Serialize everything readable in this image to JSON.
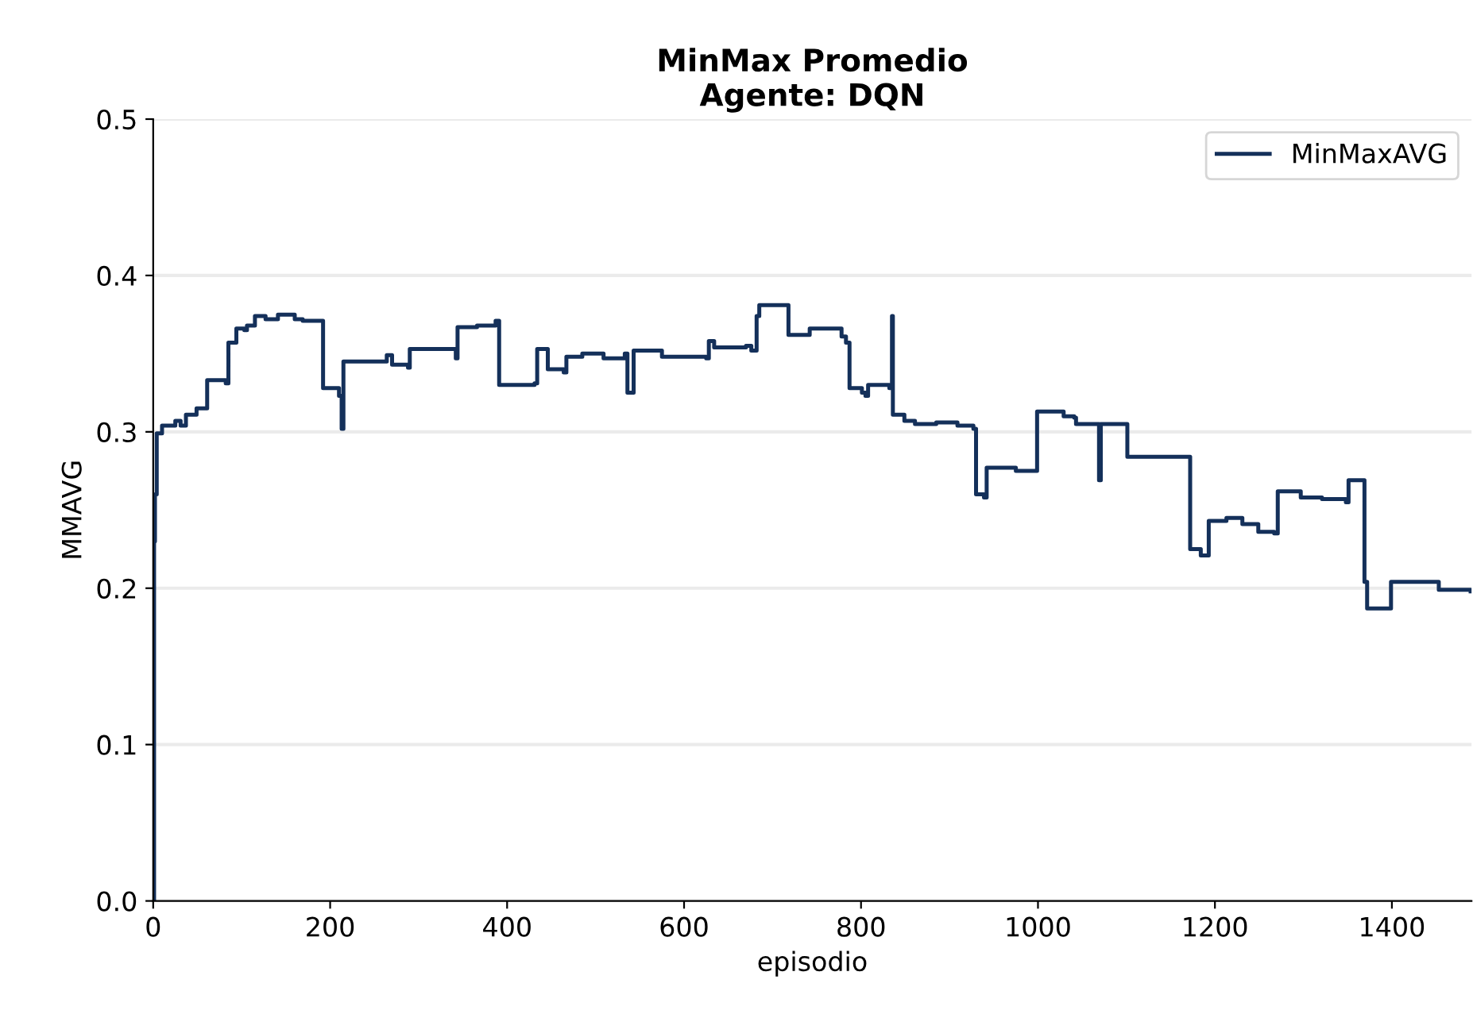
{
  "chart_data": {
    "type": "step",
    "title": "MinMax Promedio\nAgente: DQN",
    "xlabel": "episodio",
    "ylabel": "MMAVG",
    "xlim": [
      0,
      1490
    ],
    "ylim": [
      0,
      0.5
    ],
    "xticks": [
      0,
      200,
      400,
      600,
      800,
      1000,
      1200,
      1400
    ],
    "yticks": [
      {
        "value": 0,
        "label": "0.0"
      },
      0.1,
      0.2,
      0.3,
      0.4,
      0.5
    ],
    "grid": "y",
    "legend": "top right",
    "marker": "none",
    "line_style": "solid",
    "series": [
      {
        "name": "MinMaxAVG",
        "color": "#14305a",
        "x": [
          0,
          1,
          2,
          4,
          10,
          25,
          31,
          37,
          49,
          61,
          61,
          82,
          85,
          94,
          103,
          106,
          115,
          127,
          141,
          160,
          169,
          189,
          192,
          204,
          210,
          213,
          215,
          264,
          270,
          288,
          290,
          315,
          342,
          344,
          366,
          387,
          391,
          431,
          434,
          443,
          446,
          464,
          467,
          485,
          509,
          533,
          536,
          541,
          543,
          575,
          599,
          625,
          628,
          634,
          670,
          676,
          682,
          685,
          715,
          718,
          736,
          742,
          778,
          783,
          787,
          801,
          805,
          808,
          832,
          835,
          836,
          849,
          861,
          885,
          909,
          927,
          930,
          939,
          942,
          963,
          975,
          996,
          999,
          1029,
          1041,
          1043,
          1067,
          1069,
          1071,
          1097,
          1101,
          1169,
          1172,
          1184,
          1193,
          1213,
          1231,
          1247,
          1249,
          1267,
          1271,
          1291,
          1297,
          1321,
          1348,
          1351,
          1366,
          1369,
          1372,
          1396,
          1399,
          1446,
          1453,
          1489
        ],
        "values": [
          0,
          0.23,
          0.26,
          0.299,
          0.304,
          0.307,
          0.304,
          0.311,
          0.315,
          0.315,
          0.333,
          0.331,
          0.357,
          0.366,
          0.365,
          0.368,
          0.374,
          0.372,
          0.375,
          0.372,
          0.371,
          0.371,
          0.328,
          0.328,
          0.323,
          0.302,
          0.345,
          0.349,
          0.343,
          0.341,
          0.353,
          0.353,
          0.347,
          0.367,
          0.368,
          0.371,
          0.33,
          0.331,
          0.353,
          0.353,
          0.34,
          0.338,
          0.348,
          0.35,
          0.347,
          0.35,
          0.325,
          0.325,
          0.352,
          0.348,
          0.348,
          0.347,
          0.358,
          0.354,
          0.355,
          0.352,
          0.374,
          0.381,
          0.381,
          0.362,
          0.362,
          0.366,
          0.361,
          0.357,
          0.328,
          0.325,
          0.323,
          0.33,
          0.328,
          0.374,
          0.311,
          0.307,
          0.305,
          0.306,
          0.304,
          0.302,
          0.26,
          0.258,
          0.277,
          0.277,
          0.275,
          0.275,
          0.313,
          0.31,
          0.309,
          0.305,
          0.305,
          0.269,
          0.305,
          0.305,
          0.284,
          0.284,
          0.225,
          0.221,
          0.243,
          0.245,
          0.241,
          0.241,
          0.236,
          0.235,
          0.262,
          0.262,
          0.258,
          0.257,
          0.255,
          0.269,
          0.269,
          0.204,
          0.187,
          0.187,
          0.204,
          0.204,
          0.199,
          0.198
        ]
      }
    ]
  }
}
